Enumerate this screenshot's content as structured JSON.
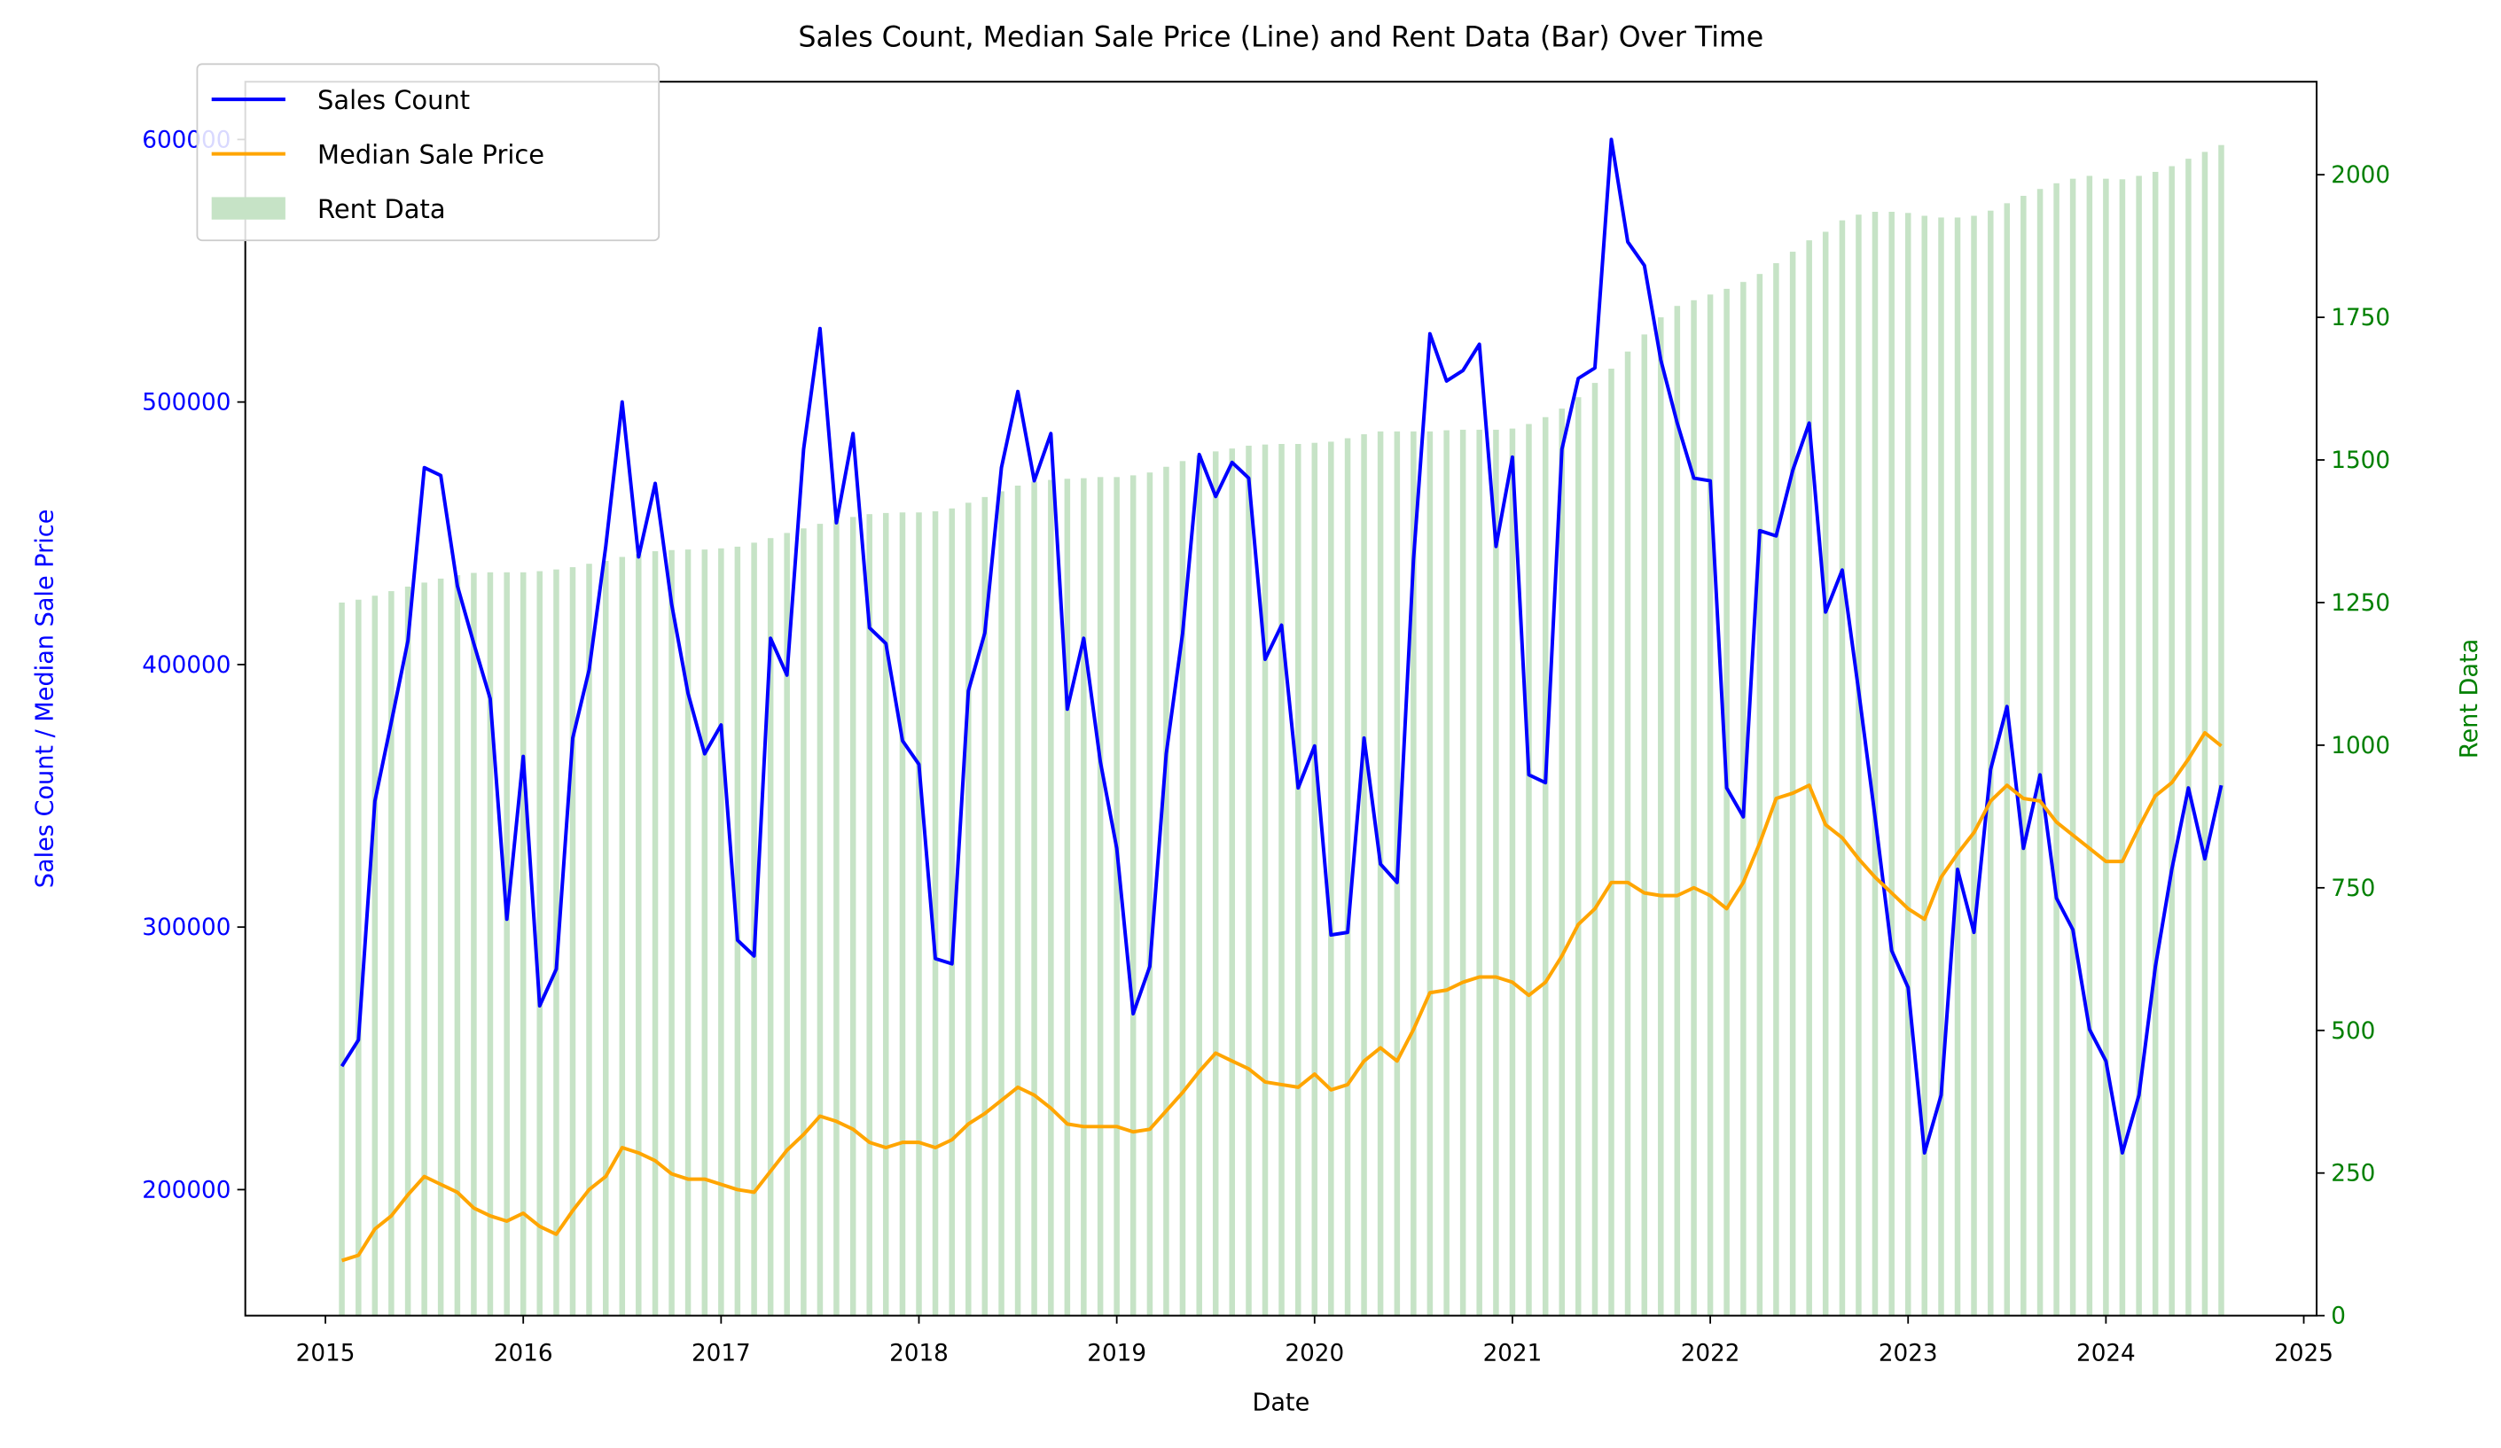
{
  "chart_data": {
    "type": "line",
    "title": "Sales Count, Median Sale Price (Line) and Rent Data (Bar) Over Time",
    "x_label": "Date",
    "y_label": "Sales Count / Median Sale Price",
    "y2_label": "Rent Data",
    "x": [
      2015.083,
      2015.167,
      2015.25,
      2015.333,
      2015.417,
      2015.5,
      2015.583,
      2015.667,
      2015.75,
      2015.833,
      2015.917,
      2016,
      2016.083,
      2016.167,
      2016.25,
      2016.333,
      2016.417,
      2016.5,
      2016.583,
      2016.667,
      2016.75,
      2016.833,
      2016.917,
      2017,
      2017.083,
      2017.167,
      2017.25,
      2017.333,
      2017.417,
      2017.5,
      2017.583,
      2017.667,
      2017.75,
      2017.833,
      2017.917,
      2018,
      2018.083,
      2018.167,
      2018.25,
      2018.333,
      2018.417,
      2018.5,
      2018.583,
      2018.667,
      2018.75,
      2018.833,
      2018.917,
      2019,
      2019.083,
      2019.167,
      2019.25,
      2019.333,
      2019.417,
      2019.5,
      2019.583,
      2019.667,
      2019.75,
      2019.833,
      2019.917,
      2020,
      2020.083,
      2020.167,
      2020.25,
      2020.333,
      2020.417,
      2020.5,
      2020.583,
      2020.667,
      2020.75,
      2020.833,
      2020.917,
      2021,
      2021.083,
      2021.167,
      2021.25,
      2021.333,
      2021.417,
      2021.5,
      2021.583,
      2021.667,
      2021.75,
      2021.833,
      2021.917,
      2022,
      2022.083,
      2022.167,
      2022.25,
      2022.333,
      2022.417,
      2022.5,
      2022.583,
      2022.667,
      2022.75,
      2022.833,
      2022.917,
      2023,
      2023.083,
      2023.167,
      2023.25,
      2023.333,
      2023.417,
      2023.5,
      2023.583,
      2023.667,
      2023.75,
      2023.833,
      2023.917,
      2024,
      2024.083,
      2024.167,
      2024.25,
      2024.333,
      2024.417,
      2024.5,
      2024.583
    ],
    "series": [
      {
        "name": "Sales Count",
        "type": "line",
        "color": "#0000ff",
        "axis": "y",
        "values": [
          247000,
          257000,
          348000,
          378000,
          409000,
          475000,
          472000,
          430000,
          408000,
          387000,
          303000,
          365000,
          270000,
          284000,
          372000,
          398000,
          445000,
          500000,
          441000,
          469000,
          423000,
          389000,
          366000,
          377000,
          295000,
          289000,
          410000,
          396000,
          482000,
          528000,
          454000,
          488000,
          414000,
          408000,
          371000,
          362000,
          288000,
          286000,
          390000,
          412000,
          475000,
          504000,
          470000,
          488000,
          383000,
          410000,
          363000,
          330000,
          267000,
          285000,
          366000,
          412000,
          480000,
          464000,
          477000,
          471000,
          402000,
          415000,
          353000,
          369000,
          297000,
          298000,
          372000,
          324000,
          317000,
          440000,
          526000,
          508000,
          512000,
          522000,
          445000,
          479000,
          358000,
          355000,
          482000,
          509000,
          513000,
          600000,
          561000,
          552000,
          516000,
          492000,
          471000,
          470000,
          353000,
          342000,
          451000,
          449000,
          474000,
          492000,
          420000,
          436000,
          390000,
          342000,
          291000,
          277000,
          214000,
          236000,
          322000,
          298000,
          360000,
          384000,
          330000,
          358000,
          311000,
          299000,
          261000,
          249000,
          214000,
          236000,
          285000,
          322000,
          353000,
          326000,
          354000
        ]
      },
      {
        "name": "Median Sale Price",
        "type": "line",
        "color": "#ffa500",
        "axis": "y",
        "values": [
          173000,
          175000,
          185000,
          190000,
          198000,
          205000,
          202000,
          199000,
          193000,
          190000,
          188000,
          191000,
          186000,
          183000,
          192000,
          200000,
          205000,
          216000,
          214000,
          211000,
          206000,
          204000,
          204000,
          202000,
          200000,
          199000,
          207000,
          215000,
          221000,
          228000,
          226000,
          223000,
          218000,
          216000,
          218000,
          218000,
          216000,
          219000,
          225000,
          229000,
          234000,
          239000,
          236000,
          231000,
          225000,
          224000,
          224000,
          224000,
          222000,
          223000,
          230000,
          237000,
          245000,
          252000,
          249000,
          246000,
          241000,
          240000,
          239000,
          244000,
          238000,
          240000,
          249000,
          254000,
          249000,
          261000,
          275000,
          276000,
          279000,
          281000,
          281000,
          279000,
          274000,
          279000,
          289000,
          301000,
          307000,
          317000,
          317000,
          313000,
          312000,
          312000,
          315000,
          312000,
          307000,
          317000,
          332000,
          349000,
          351000,
          354000,
          339000,
          334000,
          326000,
          319000,
          313000,
          307000,
          303000,
          319000,
          328000,
          336000,
          348000,
          354000,
          349000,
          348000,
          340000,
          335000,
          330000,
          325000,
          325000,
          338000,
          350000,
          355000,
          364000,
          374000,
          369000
        ]
      },
      {
        "name": "Rent Data",
        "type": "bar",
        "color": "#c6e3c6",
        "axis": "y2",
        "values": [
          1250,
          1255,
          1262,
          1270,
          1278,
          1285,
          1292,
          1298,
          1302,
          1303,
          1303,
          1303,
          1305,
          1308,
          1312,
          1318,
          1323,
          1330,
          1335,
          1340,
          1342,
          1343,
          1343,
          1345,
          1348,
          1355,
          1363,
          1372,
          1380,
          1388,
          1395,
          1400,
          1405,
          1407,
          1408,
          1408,
          1410,
          1415,
          1425,
          1435,
          1445,
          1455,
          1462,
          1465,
          1467,
          1468,
          1470,
          1470,
          1473,
          1478,
          1488,
          1498,
          1508,
          1515,
          1520,
          1525,
          1527,
          1528,
          1528,
          1530,
          1532,
          1538,
          1545,
          1550,
          1550,
          1550,
          1550,
          1552,
          1553,
          1553,
          1553,
          1555,
          1563,
          1575,
          1590,
          1610,
          1635,
          1660,
          1690,
          1720,
          1750,
          1770,
          1780,
          1790,
          1800,
          1812,
          1826,
          1845,
          1865,
          1885,
          1900,
          1920,
          1930,
          1935,
          1935,
          1933,
          1928,
          1925,
          1925,
          1928,
          1937,
          1950,
          1963,
          1975,
          1985,
          1993,
          1998,
          1993,
          1992,
          1998,
          2005,
          2015,
          2028,
          2040,
          2052
        ]
      }
    ],
    "xlim": [
      2014.595,
      2025.065
    ],
    "xticks": [
      2015,
      2016,
      2017,
      2018,
      2019,
      2020,
      2021,
      2022,
      2023,
      2024,
      2025
    ],
    "ylim": [
      152000,
      622000
    ],
    "yticks": [
      200000,
      300000,
      400000,
      500000,
      600000
    ],
    "y2lim": [
      0,
      2163
    ],
    "y2ticks": [
      0,
      250,
      500,
      750,
      1000,
      1250,
      1500,
      1750,
      2000
    ],
    "y_color": "#0000ff",
    "y2_color": "#008000",
    "legend": "upper left",
    "grid": false
  }
}
